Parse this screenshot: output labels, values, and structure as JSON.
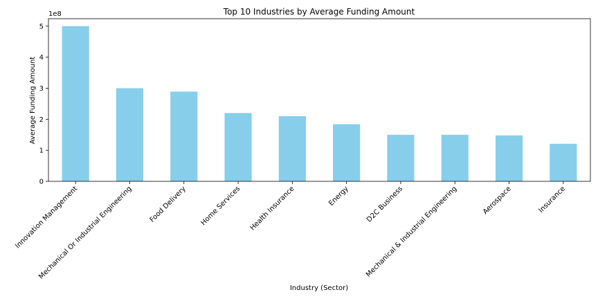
{
  "chart_data": {
    "type": "bar",
    "title": "Top 10 Industries by Average Funding Amount",
    "xlabel": "Industry (Sector)",
    "ylabel": "Average Funding Amount",
    "y_offset_label": "1e8",
    "y_multiplier": 100000000,
    "ylim": [
      0,
      5.24
    ],
    "yticks": [
      0,
      1,
      2,
      3,
      4,
      5
    ],
    "categories": [
      "Innovation Management",
      "Mechanical Or Industrial Engineering",
      "Food Delivery",
      "Home Services",
      "Health Insurance",
      "Energy",
      "D2C Business",
      "Mechanical & Industrial Engineering",
      "Aerospace",
      "Insurance"
    ],
    "values": [
      5.0,
      3.0,
      2.89,
      2.2,
      2.1,
      1.84,
      1.5,
      1.5,
      1.48,
      1.21
    ],
    "bar_color": "#87ceeb",
    "grid": false,
    "legend": "none"
  }
}
